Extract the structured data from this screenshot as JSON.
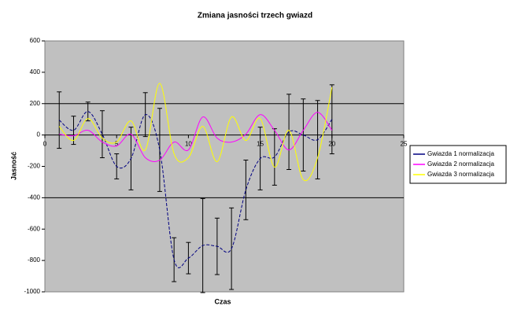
{
  "chart_data": {
    "type": "line",
    "title": "Zmiana jasności trzech gwiazd",
    "x_label": "Czas",
    "y_label": "Jasność",
    "x": [
      1,
      2,
      3,
      4,
      5,
      6,
      7,
      8,
      9,
      10,
      11,
      12,
      13,
      14,
      15,
      16,
      17,
      18,
      19,
      20
    ],
    "xlim": [
      0,
      25
    ],
    "xticks": [
      0,
      5,
      10,
      15,
      20,
      25
    ],
    "ylim": [
      -1000,
      600
    ],
    "yticks": [
      600,
      400,
      200,
      0,
      -200,
      -400,
      -600,
      -800,
      -1000
    ],
    "grid_lines": [
      200,
      -400
    ],
    "smooth": true,
    "series": [
      {
        "name": "Gwiazda 1 normalizacja",
        "color": "#000080",
        "dashed": true,
        "values": [
          95,
          30,
          150,
          5,
          -200,
          -150,
          130,
          -95,
          -795,
          -785,
          -705,
          -710,
          -725,
          -350,
          -150,
          -140,
          20,
          0,
          -30,
          100
        ],
        "errors": [
          180,
          90,
          60,
          150,
          80,
          200,
          140,
          265,
          140,
          100,
          300,
          180,
          260,
          190,
          200,
          180,
          240,
          230,
          250,
          220
        ]
      },
      {
        "name": "Gwiazda 2 normalizacja",
        "color": "#ff00ff",
        "dashed": false,
        "values": [
          5,
          -5,
          30,
          -45,
          -70,
          5,
          -145,
          -160,
          -45,
          -95,
          115,
          -20,
          -45,
          5,
          130,
          30,
          -95,
          30,
          145,
          30
        ]
      },
      {
        "name": "Gwiazda 3 normalizacja",
        "color": "#ffff00",
        "dashed": false,
        "values": [
          55,
          -35,
          105,
          -20,
          -45,
          90,
          -95,
          330,
          -120,
          -145,
          55,
          -170,
          115,
          -35,
          105,
          -205,
          30,
          -285,
          -145,
          305
        ]
      }
    ]
  }
}
